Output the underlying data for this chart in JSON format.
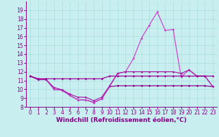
{
  "xlabel": "Windchill (Refroidissement éolien,°C)",
  "x_values": [
    0,
    1,
    2,
    3,
    4,
    5,
    6,
    7,
    8,
    9,
    10,
    11,
    12,
    13,
    14,
    15,
    16,
    17,
    18,
    19,
    20,
    21,
    22,
    23
  ],
  "line1": [
    11.5,
    11.1,
    11.1,
    10.0,
    9.9,
    9.3,
    8.8,
    8.8,
    8.5,
    8.9,
    10.3,
    10.4,
    10.4,
    10.4,
    10.4,
    10.4,
    10.4,
    10.4,
    10.4,
    10.4,
    10.4,
    10.4,
    10.4,
    10.3
  ],
  "line2": [
    11.5,
    11.1,
    11.1,
    10.0,
    9.9,
    9.3,
    8.8,
    8.8,
    8.5,
    8.9,
    10.3,
    11.8,
    12.0,
    13.5,
    15.8,
    17.3,
    18.8,
    16.7,
    16.8,
    11.4,
    12.2,
    11.5,
    11.5,
    10.3
  ],
  "line3": [
    11.5,
    11.1,
    11.1,
    10.2,
    9.95,
    9.45,
    9.1,
    9.1,
    8.7,
    9.1,
    10.4,
    11.8,
    12.0,
    12.0,
    12.0,
    12.0,
    12.0,
    12.0,
    12.0,
    11.8,
    12.2,
    11.5,
    11.5,
    10.3
  ],
  "line4": [
    11.5,
    11.2,
    11.2,
    11.2,
    11.2,
    11.2,
    11.2,
    11.2,
    11.2,
    11.2,
    11.5,
    11.5,
    11.5,
    11.5,
    11.5,
    11.5,
    11.5,
    11.5,
    11.5,
    11.5,
    11.5,
    11.5,
    11.5,
    11.5
  ],
  "bg_color": "#c8eef0",
  "grid_color": "#aadddd",
  "line_color1": "#880088",
  "line_color2": "#cc44cc",
  "line_color3": "#aa22aa",
  "line_color4": "#990099",
  "ylim": [
    8,
    20
  ],
  "yticks": [
    8,
    9,
    10,
    11,
    12,
    13,
    14,
    15,
    16,
    17,
    18,
    19
  ],
  "xticks": [
    0,
    1,
    2,
    3,
    4,
    5,
    6,
    7,
    8,
    9,
    10,
    11,
    12,
    13,
    14,
    15,
    16,
    17,
    18,
    19,
    20,
    21,
    22,
    23
  ],
  "tick_fontsize": 5.5,
  "xlabel_fontsize": 6.5,
  "marker": "D",
  "markersize": 1.8,
  "linewidth": 0.9
}
